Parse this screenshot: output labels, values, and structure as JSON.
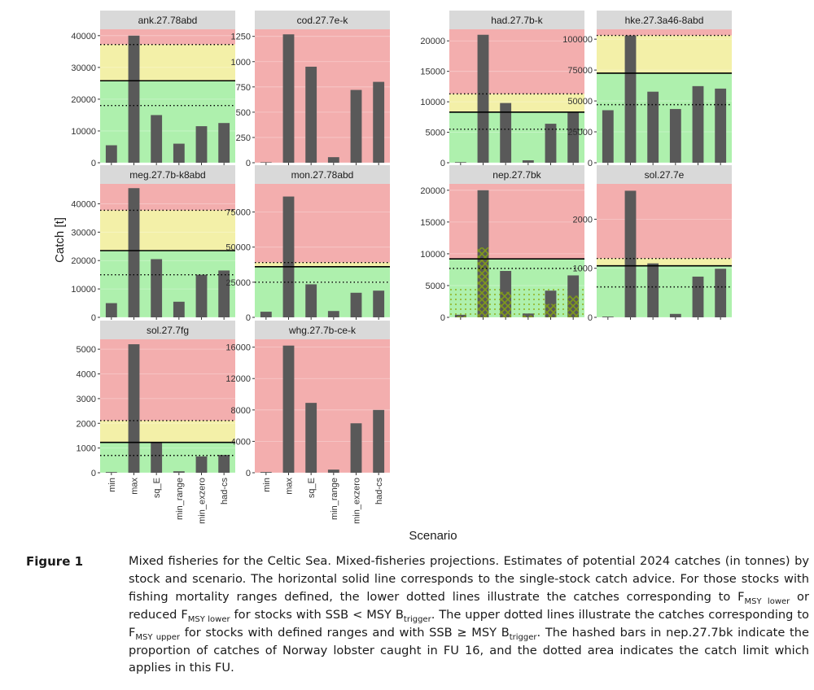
{
  "chart_data": {
    "type": "bar",
    "xlabel": "Scenario",
    "ylabel": "Catch [t]",
    "categories": [
      "min",
      "max",
      "sq_E",
      "min_range",
      "min_exzero",
      "had-cs"
    ],
    "zone_colors": {
      "red": "#f3aeae",
      "yellow": "#f3f0a8",
      "green": "#aef0ad",
      "bar": "#595959",
      "hatch": "#7f9a1a"
    },
    "panels": [
      {
        "name": "ank.27.78abd",
        "ylim": [
          0,
          42000
        ],
        "ticks": [
          0,
          10000,
          20000,
          30000,
          40000
        ],
        "values": [
          5500,
          40000,
          15000,
          6000,
          11500,
          12500
        ],
        "advice": 25800,
        "lower": 18000,
        "upper": 37200
      },
      {
        "name": "cod.27.7e-k",
        "ylim": [
          0,
          1320
        ],
        "ticks": [
          0,
          250,
          500,
          750,
          1000,
          1250
        ],
        "values": [
          5,
          1270,
          950,
          55,
          720,
          800
        ],
        "advice": 0
      },
      {
        "name": "had.27.7b-k",
        "ylim": [
          0,
          21900
        ],
        "ticks": [
          0,
          5000,
          10000,
          15000,
          20000
        ],
        "values": [
          100,
          21000,
          9800,
          400,
          6400,
          8200
        ],
        "advice": 8300,
        "lower": 5500,
        "upper": 11300
      },
      {
        "name": "hke.27.3a46-8abd",
        "ylim": [
          0,
          108000
        ],
        "ticks": [
          0,
          25000,
          50000,
          75000,
          100000
        ],
        "values": [
          42500,
          103000,
          57500,
          43500,
          62000,
          60000
        ],
        "advice": 72500,
        "lower": 47000,
        "upper": 103000
      },
      {
        "name": "meg.27.7b-k8abd",
        "ylim": [
          0,
          47000
        ],
        "ticks": [
          0,
          10000,
          20000,
          30000,
          40000
        ],
        "values": [
          5000,
          45500,
          20500,
          5500,
          15000,
          16500
        ],
        "advice": 23500,
        "lower": 15000,
        "upper": 37700
      },
      {
        "name": "mon.27.78abd",
        "ylim": [
          0,
          95000
        ],
        "ticks": [
          0,
          25000,
          50000,
          75000
        ],
        "values": [
          4000,
          86000,
          23500,
          4500,
          17500,
          19000
        ],
        "advice": 36000,
        "lower": 25000,
        "upper": 39000
      },
      {
        "name": "nep.27.7bk",
        "ylim": [
          0,
          21000
        ],
        "ticks": [
          0,
          5000,
          10000,
          15000,
          20000
        ],
        "values": [
          400,
          20000,
          7300,
          600,
          4200,
          6600
        ],
        "advice": 9200,
        "lower": 7700,
        "fu16_catch": [
          200,
          11000,
          4000,
          300,
          2100,
          3400
        ],
        "fu16_limit": 4800
      },
      {
        "name": "sol.27.7e",
        "ylim": [
          0,
          2720
        ],
        "ticks": [
          0,
          1000,
          2000
        ],
        "values": [
          15,
          2580,
          1100,
          70,
          830,
          990
        ],
        "advice": 1050,
        "lower": 620,
        "upper": 1200
      },
      {
        "name": "sol.27.7fg",
        "ylim": [
          0,
          5400
        ],
        "ticks": [
          0,
          1000,
          2000,
          3000,
          4000,
          5000
        ],
        "values": [
          30,
          5200,
          1230,
          60,
          660,
          720
        ],
        "advice": 1230,
        "lower": 700,
        "upper": 2110
      },
      {
        "name": "whg.27.7b-ce-k",
        "ylim": [
          0,
          17000
        ],
        "ticks": [
          0,
          4000,
          8000,
          12000,
          16000
        ],
        "values": [
          100,
          16200,
          8900,
          400,
          6300,
          8000
        ],
        "advice": 0
      }
    ]
  },
  "caption": {
    "figure_label": "Figure 1",
    "html": "Mixed fisheries for the Celtic Sea. Mixed-fisheries projections. Estimates of potential 2024 catches (in tonnes) by stock and scenario. The horizontal solid line corresponds to the single-stock catch advice. For those stocks with fishing mortality ranges defined, the lower dotted lines illustrate the catches corresponding to F<sub>MSY lower</sub> or reduced F<sub>MSY lower</sub> for stocks with SSB &lt; MSY B<sub>trigger</sub>. The upper dotted lines illustrate the catches corresponding to F<sub>MSY upper</sub> for stocks with defined ranges and with SSB ≥ MSY B<sub>trigger</sub>. The hashed bars in nep.27.7bk indicate the proportion of catches of Norway lobster caught in FU 16, and the dotted area indicates the catch limit which applies in this FU."
  }
}
